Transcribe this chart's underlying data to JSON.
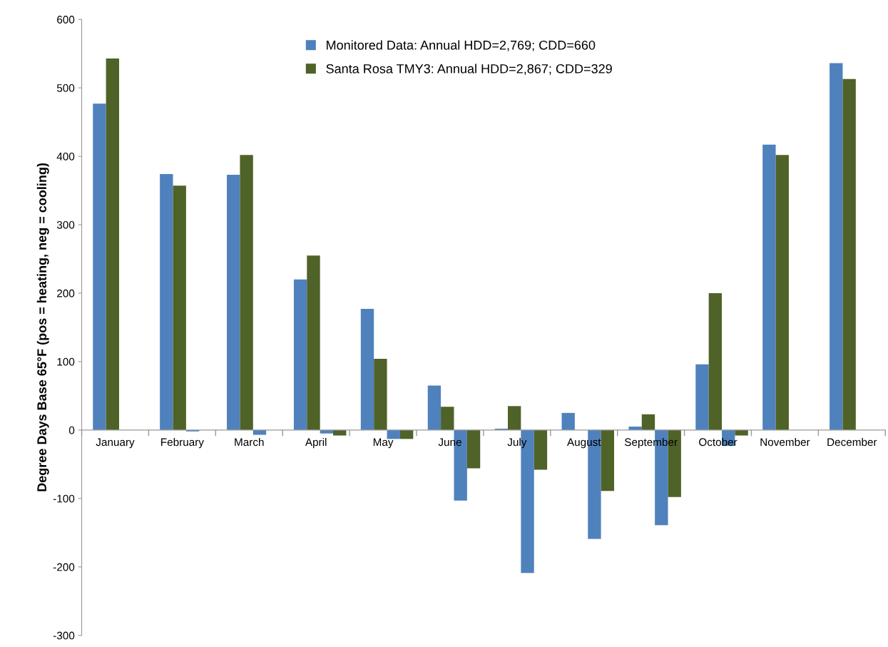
{
  "chart_data": {
    "type": "bar",
    "ylabel": "Degree Days Base 65°F (pos = heating, neg = cooling)",
    "categories": [
      "January",
      "February",
      "March",
      "April",
      "May",
      "June",
      "July",
      "August",
      "September",
      "October",
      "November",
      "December"
    ],
    "series": [
      {
        "name": "Monitored Data: Annual HDD=2,769; CDD=660",
        "color": "#4f81bd",
        "values": [
          477,
          374,
          373,
          220,
          177,
          65,
          2,
          25,
          5,
          96,
          417,
          536
        ]
      },
      {
        "name": "Santa Rosa TMY3: Annual HDD=2,867; CDD=329",
        "color": "#4f6228",
        "values": [
          543,
          357,
          402,
          255,
          104,
          34,
          35,
          null,
          23,
          200,
          402,
          513
        ]
      },
      {
        "color": "#4f81bd",
        "values": [
          null,
          -2,
          -7,
          -5,
          -13,
          -103,
          -209,
          -159,
          -139,
          -23,
          null,
          null
        ]
      },
      {
        "color": "#4f6228",
        "values": [
          null,
          null,
          null,
          -8,
          -13,
          -56,
          -58,
          -89,
          -98,
          -8,
          null,
          null
        ]
      }
    ],
    "ylim": [
      -300,
      600
    ],
    "yticks": [
      -300,
      -200,
      -100,
      0,
      100,
      200,
      300,
      400,
      500,
      600
    ],
    "grid": false,
    "legend": "top"
  }
}
